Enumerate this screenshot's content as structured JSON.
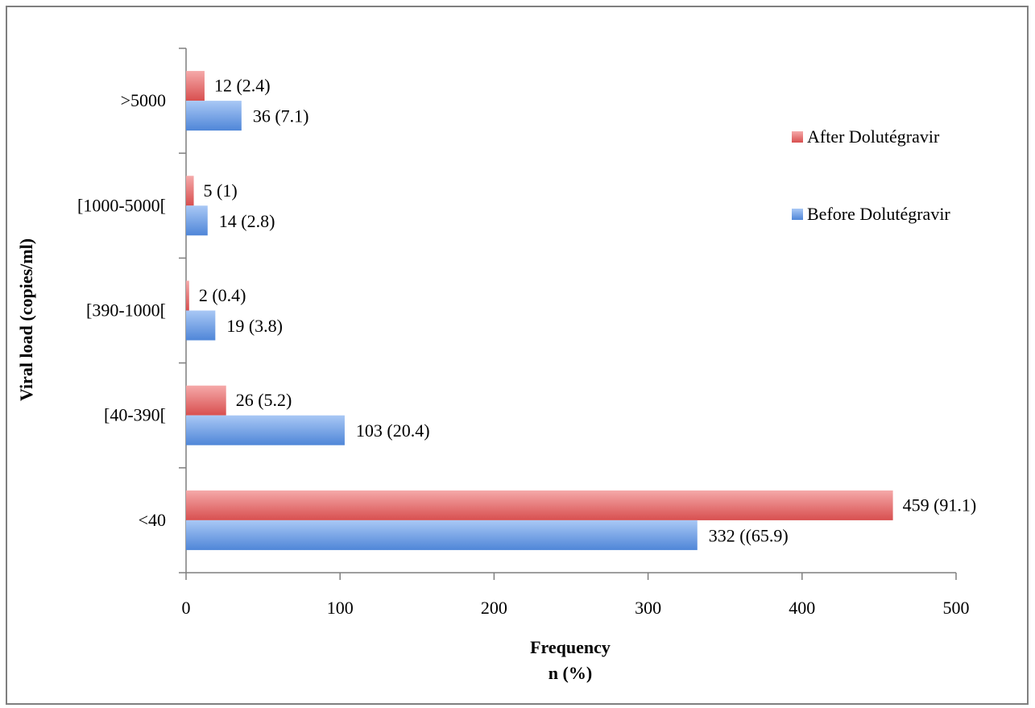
{
  "chart_data": {
    "type": "bar",
    "orientation": "horizontal",
    "categories": [
      "<40",
      "[40-390[",
      "[390-1000[",
      "[1000-5000[",
      ">5000"
    ],
    "series": [
      {
        "name": "Before Dolutégravir",
        "values": [
          332,
          103,
          19,
          14,
          36
        ],
        "labels": [
          "332 ((65.9)",
          "103 (20.4)",
          "19 (3.8)",
          "14 (2.8)",
          "36 (7.1)"
        ],
        "color": "#6b9ae8"
      },
      {
        "name": "After Dolutégravir",
        "values": [
          459,
          26,
          2,
          5,
          12
        ],
        "labels": [
          "459 (91.1)",
          "26 (5.2)",
          "2 (0.4)",
          "5 (1)",
          "12 (2.4)"
        ],
        "color": "#e86b6b"
      }
    ],
    "xlabel_line1": "Frequency",
    "xlabel_line2": "n (%)",
    "ylabel": "Viral load (copies/ml)",
    "xlim": [
      0,
      500
    ],
    "xticks": [
      "0",
      "100",
      "200",
      "300",
      "400",
      "500"
    ],
    "grid": false,
    "legend_position": "right"
  }
}
